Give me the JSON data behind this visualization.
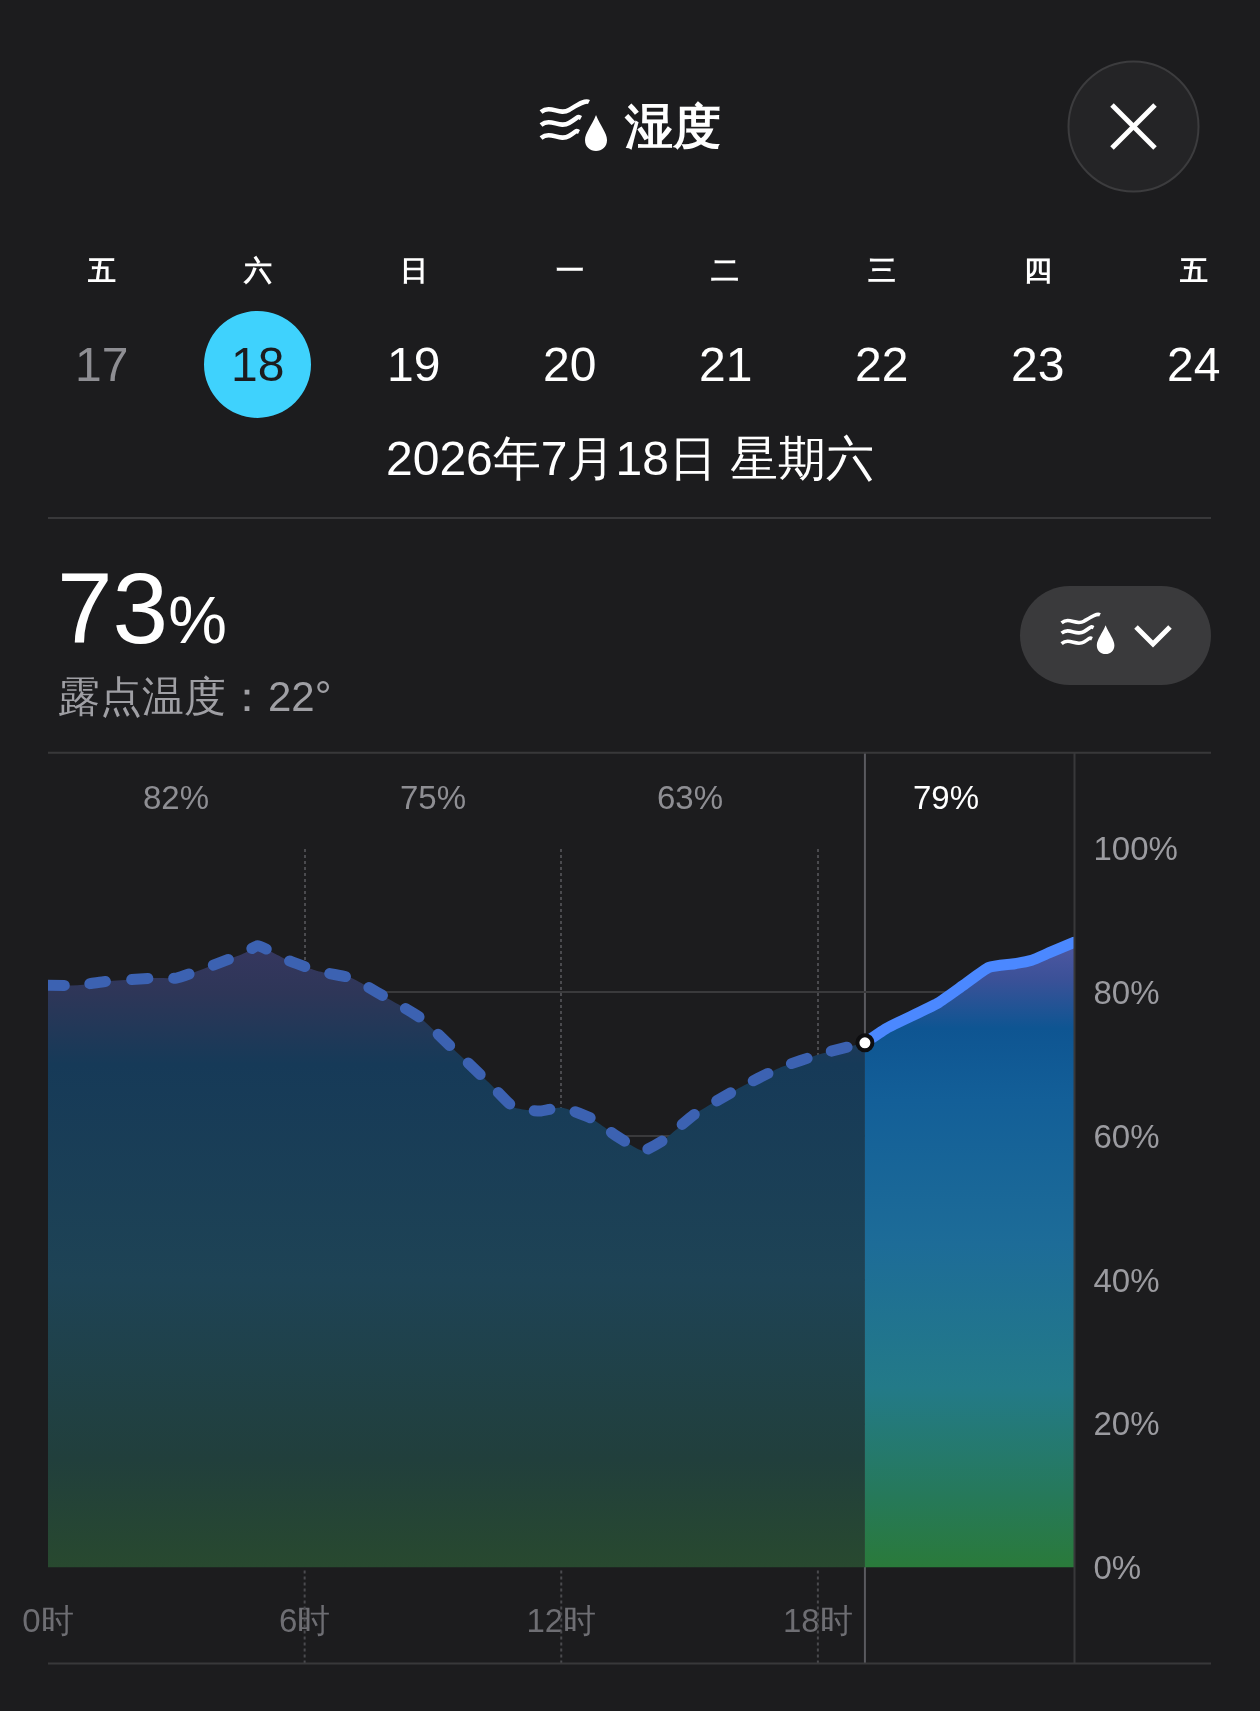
{
  "chart_data": {
    "type": "area",
    "title": "湿度",
    "subtitle": "2026年7月18日 星期六",
    "annotations": [
      "五",
      "六",
      "日",
      "一",
      "二",
      "三",
      "四",
      "五",
      "17",
      "18",
      "19",
      "20",
      "21",
      "22",
      "23",
      "24",
      "73%",
      "露点温度：22°",
      "82%",
      "75%",
      "63%",
      "79%"
    ],
    "xlim": [
      0,
      24
    ],
    "xticks": [
      {
        "value": 0,
        "label": "0时"
      },
      {
        "value": 6,
        "label": "6时"
      },
      {
        "value": 12,
        "label": "12时"
      },
      {
        "value": 18,
        "label": "18时"
      }
    ],
    "ylim": [
      0,
      100
    ],
    "yticks": [
      {
        "value": 0,
        "label": "0%"
      },
      {
        "value": 20,
        "label": "20%"
      },
      {
        "value": 40,
        "label": "40%"
      },
      {
        "value": 60,
        "label": "60%"
      },
      {
        "value": 80,
        "label": "80%"
      },
      {
        "value": 100,
        "label": "100%"
      }
    ],
    "grid": true,
    "series": [
      {
        "x": [
          0,
          0.7,
          1.3,
          2.5,
          3.0,
          3.5,
          4.6,
          4.9,
          5.6,
          6.3,
          6.7,
          7.1,
          7.7,
          8.7,
          9.5,
          10.3,
          10.9,
          11.5,
          12.0,
          12.7,
          13.3,
          13.9,
          14.4,
          15.1,
          16.1,
          17.1,
          18.1,
          19.1
        ],
        "values": [
          81,
          81,
          81.5,
          82,
          82,
          83,
          85.5,
          86.5,
          84.5,
          83,
          82.5,
          82,
          80,
          76.5,
          72,
          67.5,
          64,
          63.5,
          64,
          62.5,
          60,
          58,
          59.5,
          63,
          66.5,
          69.5,
          71.5,
          73
        ],
        "color": "#3c62b2",
        "line_style": "dashed"
      },
      {
        "x": [
          19.1,
          19.6,
          20.8,
          21.4,
          22.0,
          22.6,
          23.0,
          23.4,
          24
        ],
        "values": [
          73,
          75,
          78.5,
          81,
          83.5,
          84,
          84.5,
          85.5,
          87
        ],
        "color": "#4b88ff",
        "line_style": "solid"
      },
      {
        "type": "scatter",
        "x": [
          19.1
        ],
        "values": [
          73
        ],
        "color": "#ffffff",
        "marker": "circle"
      }
    ],
    "ref_lines": [
      {
        "axis": "x",
        "value": 19.1,
        "color": "#5a5a5f"
      }
    ]
  }
}
